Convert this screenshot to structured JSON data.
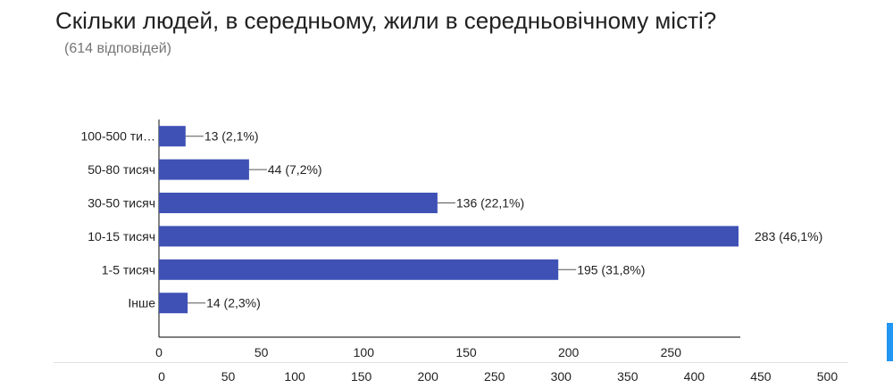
{
  "title": "Скільки людей, в середньому, жили в середньовічному місті?",
  "subtitle": "(614 відповідей)",
  "chart_data": {
    "type": "bar",
    "orientation": "horizontal",
    "categories": [
      "100-500 ти…",
      "50-80 тисяч",
      "30-50 тисяч",
      "10-15 тисяч",
      "1-5 тисяч",
      "Інше"
    ],
    "values": [
      13,
      44,
      136,
      283,
      195,
      14
    ],
    "data_labels": [
      "13 (2,1%)",
      "44 (7,2%)",
      "136 (22,1%)",
      "283 (46,1%)",
      "195 (31,8%)",
      "14 (2,3%)"
    ],
    "x_ticks": [
      0,
      50,
      100,
      150,
      200,
      250
    ],
    "xlim": [
      0,
      283
    ],
    "secondary_x_ticks": [
      0,
      50,
      100,
      150,
      200,
      250,
      300,
      350,
      400,
      450,
      500
    ],
    "secondary_xlim": [
      0,
      550
    ],
    "bar_color": "#3f51b5",
    "axis_color": "#333333",
    "label_line_color": "#555555",
    "grid": false,
    "legend": "none"
  }
}
